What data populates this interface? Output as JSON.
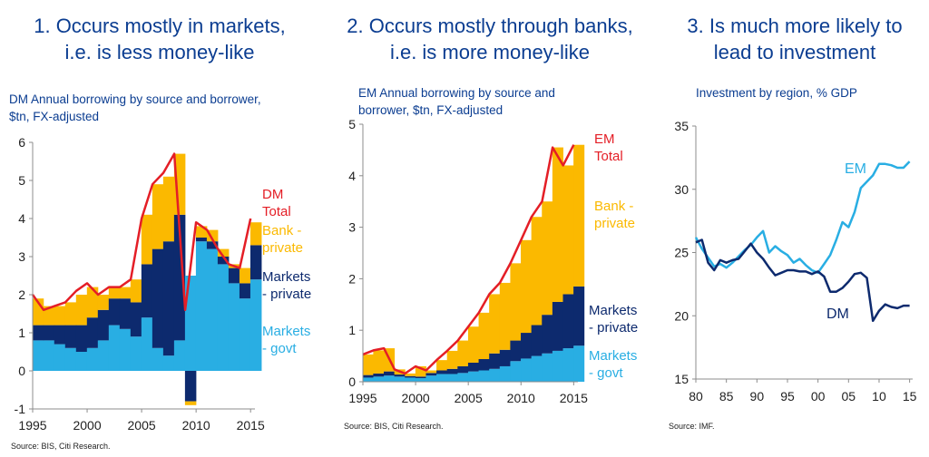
{
  "panels": [
    {
      "heading": [
        "1. Occurs mostly in markets,",
        "i.e. is less money-like"
      ],
      "subtitle": [
        "DM Annual borrowing by source and borrower,",
        "$tn, FX-adjusted"
      ],
      "source": "Source: BIS, Citi Research."
    },
    {
      "heading": [
        "2. Occurs mostly through banks,",
        "i.e. is more money-like"
      ],
      "subtitle": [
        "EM Annual borrowing by source and",
        "borrower, $tn, FX-adjusted"
      ],
      "source": "Source: BIS, Citi Research."
    },
    {
      "heading": [
        "3. Is much more likely to",
        "lead to investment"
      ],
      "subtitle": [
        "Investment by region, % GDP"
      ],
      "source": "Source: IMF."
    }
  ],
  "colors": {
    "total": "#e41e26",
    "bank": "#fbb900",
    "markets_private": "#0d2a6e",
    "markets_govt": "#29aee3",
    "em_line": "#29aee3",
    "dm_line": "#0d2a6e",
    "axis": "#8c8c8c",
    "heading": "#0b3d91"
  },
  "chart_data": [
    {
      "type": "area",
      "stacked": true,
      "x": [
        1995,
        1996,
        1997,
        1998,
        1999,
        2000,
        2001,
        2002,
        2003,
        2004,
        2005,
        2006,
        2007,
        2008,
        2009,
        2010,
        2011,
        2012,
        2013,
        2014,
        2015
      ],
      "series": [
        {
          "name": "Markets - govt",
          "values": [
            0.8,
            0.8,
            0.7,
            0.6,
            0.5,
            0.6,
            0.8,
            1.2,
            1.1,
            0.9,
            1.4,
            0.6,
            0.4,
            0.8,
            2.5,
            3.4,
            3.2,
            2.8,
            2.3,
            1.9,
            2.4
          ]
        },
        {
          "name": "Markets - private",
          "values": [
            0.4,
            0.4,
            0.5,
            0.6,
            0.7,
            0.8,
            0.8,
            0.7,
            0.8,
            0.9,
            1.4,
            2.6,
            3.0,
            3.3,
            -0.8,
            0.1,
            0.2,
            0.2,
            0.4,
            0.4,
            0.9
          ]
        },
        {
          "name": "Bank - private",
          "values": [
            0.7,
            0.5,
            0.5,
            0.6,
            0.8,
            0.8,
            0.4,
            0.3,
            0.3,
            0.6,
            1.3,
            1.7,
            1.7,
            1.6,
            -0.1,
            0.3,
            0.3,
            0.2,
            0.1,
            0.4,
            0.6
          ]
        },
        {
          "name": "Total",
          "values": [
            2.0,
            1.6,
            1.7,
            1.8,
            2.1,
            2.3,
            2.0,
            2.2,
            2.2,
            2.4,
            4.0,
            4.9,
            5.2,
            5.7,
            1.6,
            3.9,
            3.7,
            3.2,
            2.8,
            2.7,
            4.0
          ]
        }
      ],
      "direct_labels": [
        [
          "DM",
          "Total"
        ],
        [
          "Bank -",
          "private"
        ],
        [
          "Markets",
          "- private"
        ],
        [
          "Markets",
          "- govt"
        ]
      ],
      "xticks": [
        "1995",
        "2000",
        "2005",
        "2010",
        "2015"
      ],
      "yticks": [
        "-1",
        "0",
        "1",
        "2",
        "3",
        "4",
        "5",
        "6"
      ],
      "xlim": [
        1995,
        2015.4
      ],
      "ylim": [
        -1,
        6
      ]
    },
    {
      "type": "area",
      "stacked": true,
      "x": [
        1995,
        1996,
        1997,
        1998,
        1999,
        2000,
        2001,
        2002,
        2003,
        2004,
        2005,
        2006,
        2007,
        2008,
        2009,
        2010,
        2011,
        2012,
        2013,
        2014,
        2015
      ],
      "series": [
        {
          "name": "Markets - govt",
          "values": [
            0.08,
            0.1,
            0.12,
            0.1,
            0.08,
            0.07,
            0.12,
            0.15,
            0.15,
            0.17,
            0.2,
            0.22,
            0.25,
            0.3,
            0.4,
            0.45,
            0.5,
            0.55,
            0.6,
            0.65,
            0.7
          ]
        },
        {
          "name": "Markets - private",
          "values": [
            0.05,
            0.06,
            0.08,
            0.04,
            0.03,
            0.03,
            0.05,
            0.07,
            0.1,
            0.13,
            0.17,
            0.22,
            0.3,
            0.32,
            0.4,
            0.5,
            0.6,
            0.75,
            0.95,
            1.05,
            1.15
          ]
        },
        {
          "name": "Bank - private",
          "values": [
            0.4,
            0.45,
            0.45,
            0.1,
            0.05,
            0.2,
            0.05,
            0.2,
            0.35,
            0.5,
            0.7,
            0.9,
            1.15,
            1.3,
            1.5,
            1.8,
            2.1,
            2.2,
            3.0,
            2.5,
            2.75
          ]
        },
        {
          "name": "Total",
          "values": [
            0.53,
            0.61,
            0.65,
            0.24,
            0.16,
            0.3,
            0.22,
            0.42,
            0.6,
            0.8,
            1.07,
            1.34,
            1.7,
            1.92,
            2.3,
            2.75,
            3.2,
            3.5,
            4.55,
            4.2,
            4.6
          ]
        }
      ],
      "direct_labels": [
        [
          "EM",
          "Total"
        ],
        [
          "Bank -",
          "private"
        ],
        [
          "Markets",
          "- private"
        ],
        [
          "Markets",
          "- govt"
        ]
      ],
      "xticks": [
        "1995",
        "2000",
        "2005",
        "2010",
        "2015"
      ],
      "yticks": [
        "0",
        "1",
        "2",
        "3",
        "4",
        "5"
      ],
      "xlim": [
        1995,
        2015.4
      ],
      "ylim": [
        0,
        5
      ]
    },
    {
      "type": "line",
      "x": [
        1980,
        1981,
        1982,
        1983,
        1984,
        1985,
        1986,
        1987,
        1988,
        1989,
        1990,
        1991,
        1992,
        1993,
        1994,
        1995,
        1996,
        1997,
        1998,
        1999,
        2000,
        2001,
        2002,
        2003,
        2004,
        2005,
        2006,
        2007,
        2008,
        2009,
        2010,
        2011,
        2012,
        2013,
        2014,
        2015
      ],
      "series": [
        {
          "name": "EM",
          "values": [
            26.2,
            25.3,
            24.6,
            23.9,
            24.1,
            23.8,
            24.2,
            24.7,
            25.2,
            25.6,
            26.2,
            26.7,
            25.0,
            25.5,
            25.1,
            24.8,
            24.2,
            24.5,
            24.0,
            23.6,
            23.4,
            24.1,
            24.8,
            26.0,
            27.4,
            27.0,
            28.2,
            30.1,
            30.6,
            31.1,
            32.0,
            32.0,
            31.9,
            31.7,
            31.7,
            32.2
          ]
        },
        {
          "name": "DM",
          "values": [
            25.8,
            26.0,
            24.2,
            23.6,
            24.4,
            24.2,
            24.4,
            24.5,
            25.1,
            25.7,
            25.0,
            24.5,
            23.8,
            23.2,
            23.4,
            23.6,
            23.6,
            23.5,
            23.5,
            23.3,
            23.5,
            23.1,
            21.9,
            21.9,
            22.2,
            22.7,
            23.3,
            23.4,
            23.0,
            19.6,
            20.4,
            20.9,
            20.7,
            20.6,
            20.8,
            20.8
          ]
        }
      ],
      "direct_labels": [
        [
          "EM"
        ],
        [
          "DM"
        ]
      ],
      "xticks": [
        "80",
        "85",
        "90",
        "95",
        "00",
        "05",
        "10",
        "15"
      ],
      "yticks": [
        "15",
        "20",
        "25",
        "30",
        "35"
      ],
      "xlim": [
        1980,
        2015.5
      ],
      "ylim": [
        15,
        35
      ]
    }
  ]
}
